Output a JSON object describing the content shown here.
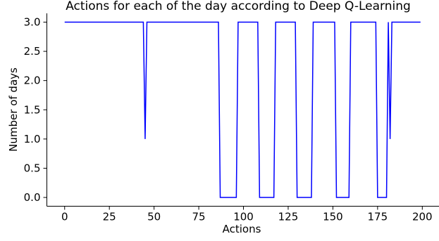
{
  "chart_data": {
    "type": "line",
    "title": "Actions for each of the day according to Deep Q-Learning",
    "xlabel": "Actions",
    "ylabel": "Number of days",
    "xlim": [
      -9.95,
      208.95
    ],
    "ylim": [
      -0.15,
      3.15
    ],
    "xticks": [
      0,
      25,
      50,
      75,
      100,
      125,
      150,
      175,
      200
    ],
    "yticks": [
      0.0,
      0.5,
      1.0,
      1.5,
      2.0,
      2.5,
      3.0
    ],
    "xtick_labels": [
      "0",
      "25",
      "50",
      "75",
      "100",
      "125",
      "150",
      "175",
      "200"
    ],
    "ytick_labels": [
      "0.0",
      "0.5",
      "1.0",
      "1.5",
      "2.0",
      "2.5",
      "3.0"
    ],
    "grid": false,
    "legend": false,
    "color": "#0000ff",
    "series": [
      {
        "x": [
          0,
          44,
          45,
          46,
          86,
          87,
          96,
          97,
          108,
          109,
          117,
          118,
          129,
          130,
          138,
          139,
          151,
          152,
          159,
          160,
          174,
          175,
          180,
          181,
          182,
          183,
          184,
          199
        ],
        "y": [
          3,
          3,
          1,
          3,
          3,
          0,
          0,
          3,
          3,
          0,
          0,
          3,
          3,
          0,
          0,
          3,
          3,
          0,
          0,
          3,
          3,
          0,
          0,
          3,
          1,
          3,
          3,
          3
        ]
      }
    ]
  }
}
